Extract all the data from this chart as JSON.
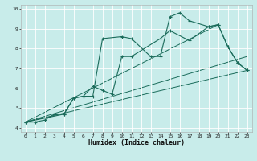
{
  "xlabel": "Humidex (Indice chaleur)",
  "background_color": "#c8ecea",
  "grid_color": "#ffffff",
  "line_color": "#1a6b5a",
  "xlim": [
    -0.5,
    23.5
  ],
  "ylim": [
    3.8,
    10.2
  ],
  "xticks": [
    0,
    1,
    2,
    3,
    4,
    5,
    6,
    7,
    8,
    9,
    10,
    11,
    12,
    13,
    14,
    15,
    16,
    17,
    18,
    19,
    20,
    21,
    22,
    23
  ],
  "yticks": [
    4,
    5,
    6,
    7,
    8,
    9,
    10
  ],
  "series1_x": [
    0,
    1,
    2,
    3,
    4,
    5,
    6,
    7,
    8,
    10,
    11,
    13,
    14,
    15,
    16,
    17,
    19,
    20,
    21,
    22,
    23
  ],
  "series1_y": [
    4.3,
    4.3,
    4.4,
    4.7,
    4.7,
    5.5,
    5.6,
    5.6,
    8.5,
    8.6,
    8.5,
    7.6,
    7.6,
    9.6,
    9.8,
    9.4,
    9.1,
    9.2,
    8.1,
    7.3,
    6.9
  ],
  "series2_x": [
    0,
    4,
    5,
    6,
    7,
    8,
    9,
    10,
    11,
    14,
    15,
    17,
    19,
    20,
    21,
    22,
    23
  ],
  "series2_y": [
    4.3,
    4.7,
    5.5,
    5.6,
    6.1,
    5.9,
    5.7,
    7.6,
    7.6,
    8.5,
    8.9,
    8.4,
    9.1,
    9.2,
    8.1,
    7.3,
    6.9
  ],
  "line1_x": [
    0,
    20
  ],
  "line1_y": [
    4.3,
    9.2
  ],
  "line2_x": [
    0,
    23
  ],
  "line2_y": [
    4.3,
    6.9
  ],
  "line3_x": [
    0,
    23
  ],
  "line3_y": [
    4.3,
    7.6
  ]
}
